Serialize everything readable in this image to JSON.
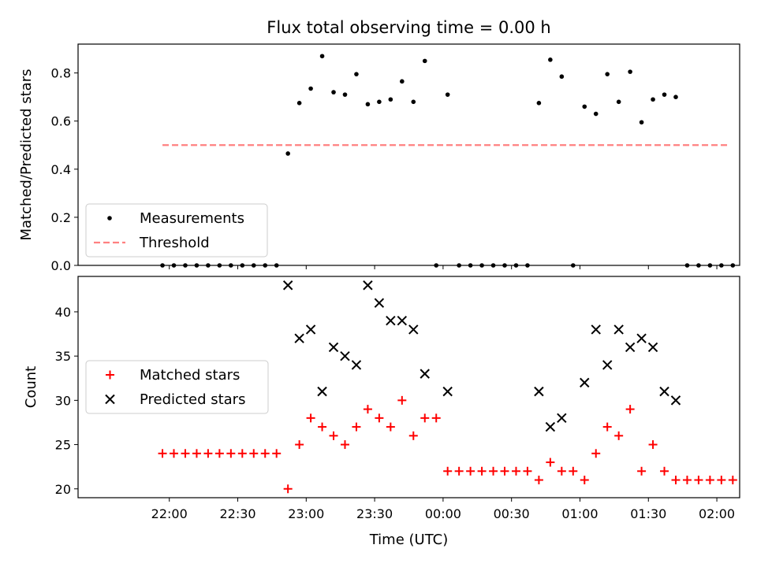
{
  "chart_data": [
    {
      "type": "scatter",
      "title": "Flux total observing time = 0.00 h",
      "ylabel": "Matched/Predicted stars",
      "ylim": [
        0,
        0.92
      ],
      "yticks": [
        "0.0",
        "0.2",
        "0.4",
        "0.6",
        "0.8"
      ],
      "x_range_minutes": [
        -40,
        250
      ],
      "legend": {
        "placement": "lower-left",
        "entries": [
          "Measurements",
          "Threshold"
        ]
      },
      "threshold": {
        "name": "Threshold",
        "value": 0.5,
        "x_start_minutes": -3,
        "x_end_minutes": 245,
        "color": "#ff8080",
        "style": "dashed"
      },
      "series": [
        {
          "name": "Measurements",
          "color": "#000000",
          "x_minutes": [
            -3,
            2,
            7,
            12,
            17,
            22,
            27,
            32,
            37,
            42,
            47,
            52,
            57,
            62,
            67,
            72,
            77,
            82,
            87,
            92,
            97,
            102,
            107,
            112,
            117,
            122,
            127,
            132,
            137,
            142,
            147,
            152,
            157,
            162,
            167,
            172,
            177,
            182,
            187,
            192,
            197,
            202,
            207,
            212,
            217,
            222,
            227,
            232,
            237,
            242,
            247
          ],
          "values": [
            0,
            0,
            0,
            0,
            0,
            0,
            0,
            0,
            0,
            0,
            0,
            0.465,
            0.675,
            0.735,
            0.87,
            0.72,
            0.71,
            0.795,
            0.67,
            0.68,
            0.69,
            0.765,
            0.68,
            0.85,
            0,
            0.71,
            0,
            0,
            0,
            0,
            0,
            0,
            0,
            0.675,
            0.855,
            0.785,
            0,
            0.66,
            0.63,
            0.795,
            0.68,
            0.805,
            0.595,
            0.69,
            0.71,
            0.7,
            0,
            0,
            0,
            0,
            0
          ]
        }
      ]
    },
    {
      "type": "scatter",
      "xlabel": "Time (UTC)",
      "ylabel": "Count",
      "ylim": [
        19,
        44
      ],
      "yticks": [
        "20",
        "25",
        "30",
        "35",
        "40"
      ],
      "x_range_minutes": [
        -40,
        250
      ],
      "xtick_labels": [
        "22:00",
        "22:30",
        "23:00",
        "23:30",
        "00:00",
        "00:30",
        "01:00",
        "01:30",
        "02:00"
      ],
      "xtick_minutes": [
        0,
        30,
        60,
        90,
        120,
        150,
        180,
        210,
        240
      ],
      "legend": {
        "placement": "center-left",
        "entries": [
          "Matched stars",
          "Predicted stars"
        ]
      },
      "series": [
        {
          "name": "Matched stars",
          "marker": "plus",
          "color": "#ff0000",
          "x_minutes": [
            -3,
            2,
            7,
            12,
            17,
            22,
            27,
            32,
            37,
            42,
            47,
            52,
            57,
            62,
            67,
            72,
            77,
            82,
            87,
            92,
            97,
            102,
            107,
            112,
            117,
            122,
            127,
            132,
            137,
            142,
            147,
            152,
            157,
            162,
            167,
            172,
            177,
            182,
            187,
            192,
            197,
            202,
            207,
            212,
            217,
            222,
            227,
            232,
            237,
            242,
            247
          ],
          "values": [
            24,
            24,
            24,
            24,
            24,
            24,
            24,
            24,
            24,
            24,
            24,
            20,
            25,
            28,
            27,
            26,
            25,
            27,
            29,
            28,
            27,
            30,
            26,
            28,
            28,
            22,
            22,
            22,
            22,
            22,
            22,
            22,
            22,
            21,
            23,
            22,
            22,
            21,
            24,
            27,
            26,
            29,
            22,
            25,
            22,
            21,
            21,
            21,
            21,
            21,
            21
          ]
        },
        {
          "name": "Predicted stars",
          "marker": "x",
          "color": "#000000",
          "x_minutes": [
            52,
            57,
            62,
            67,
            72,
            77,
            82,
            87,
            92,
            97,
            102,
            107,
            112,
            122,
            162,
            167,
            172,
            182,
            187,
            192,
            197,
            202,
            207,
            212,
            217,
            222
          ],
          "values": [
            43,
            37,
            38,
            31,
            36,
            35,
            34,
            43,
            41,
            39,
            39,
            38,
            33,
            31,
            31,
            27,
            28,
            32,
            38,
            34,
            38,
            36,
            37,
            36,
            31,
            30
          ]
        }
      ]
    }
  ]
}
